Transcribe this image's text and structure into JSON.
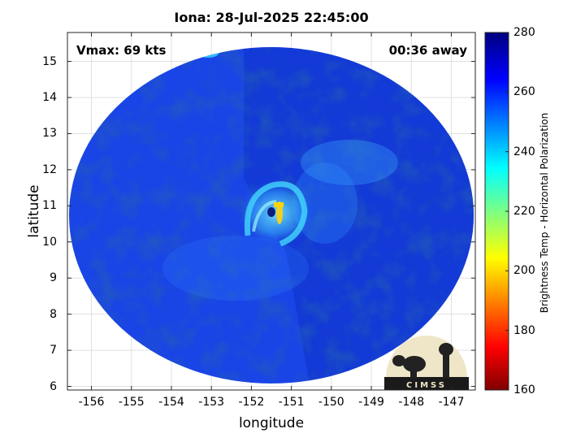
{
  "title": "Iona: 28-Jul-2025 22:45:00",
  "annotations": {
    "vmax": "Vmax: 69 kts",
    "away": "00:36 away"
  },
  "axes": {
    "xlabel": "longitude",
    "ylabel": "latitude",
    "xlim": [
      -156.6,
      -146.4
    ],
    "ylim": [
      5.9,
      15.8
    ],
    "xticks": [
      -156,
      -155,
      -154,
      -153,
      -152,
      -151,
      -150,
      -149,
      -148,
      -147
    ],
    "yticks": [
      6,
      7,
      8,
      9,
      10,
      11,
      12,
      13,
      14,
      15
    ],
    "grid": true
  },
  "colorbar": {
    "label": "Brightness Temp - Horizontal Polarization",
    "range": [
      160,
      280
    ],
    "ticks": [
      160,
      180,
      200,
      220,
      240,
      260,
      280
    ],
    "colormap": "jet"
  },
  "storm": {
    "name": "Iona",
    "center_lon": -151.1,
    "center_lat": 10.95
  },
  "logo": {
    "text": "CIMSS"
  },
  "colors": {
    "background_blue": "#1440e0",
    "dark_blue": "#0a28b4",
    "eyewall_yellow": "#f0d020"
  }
}
